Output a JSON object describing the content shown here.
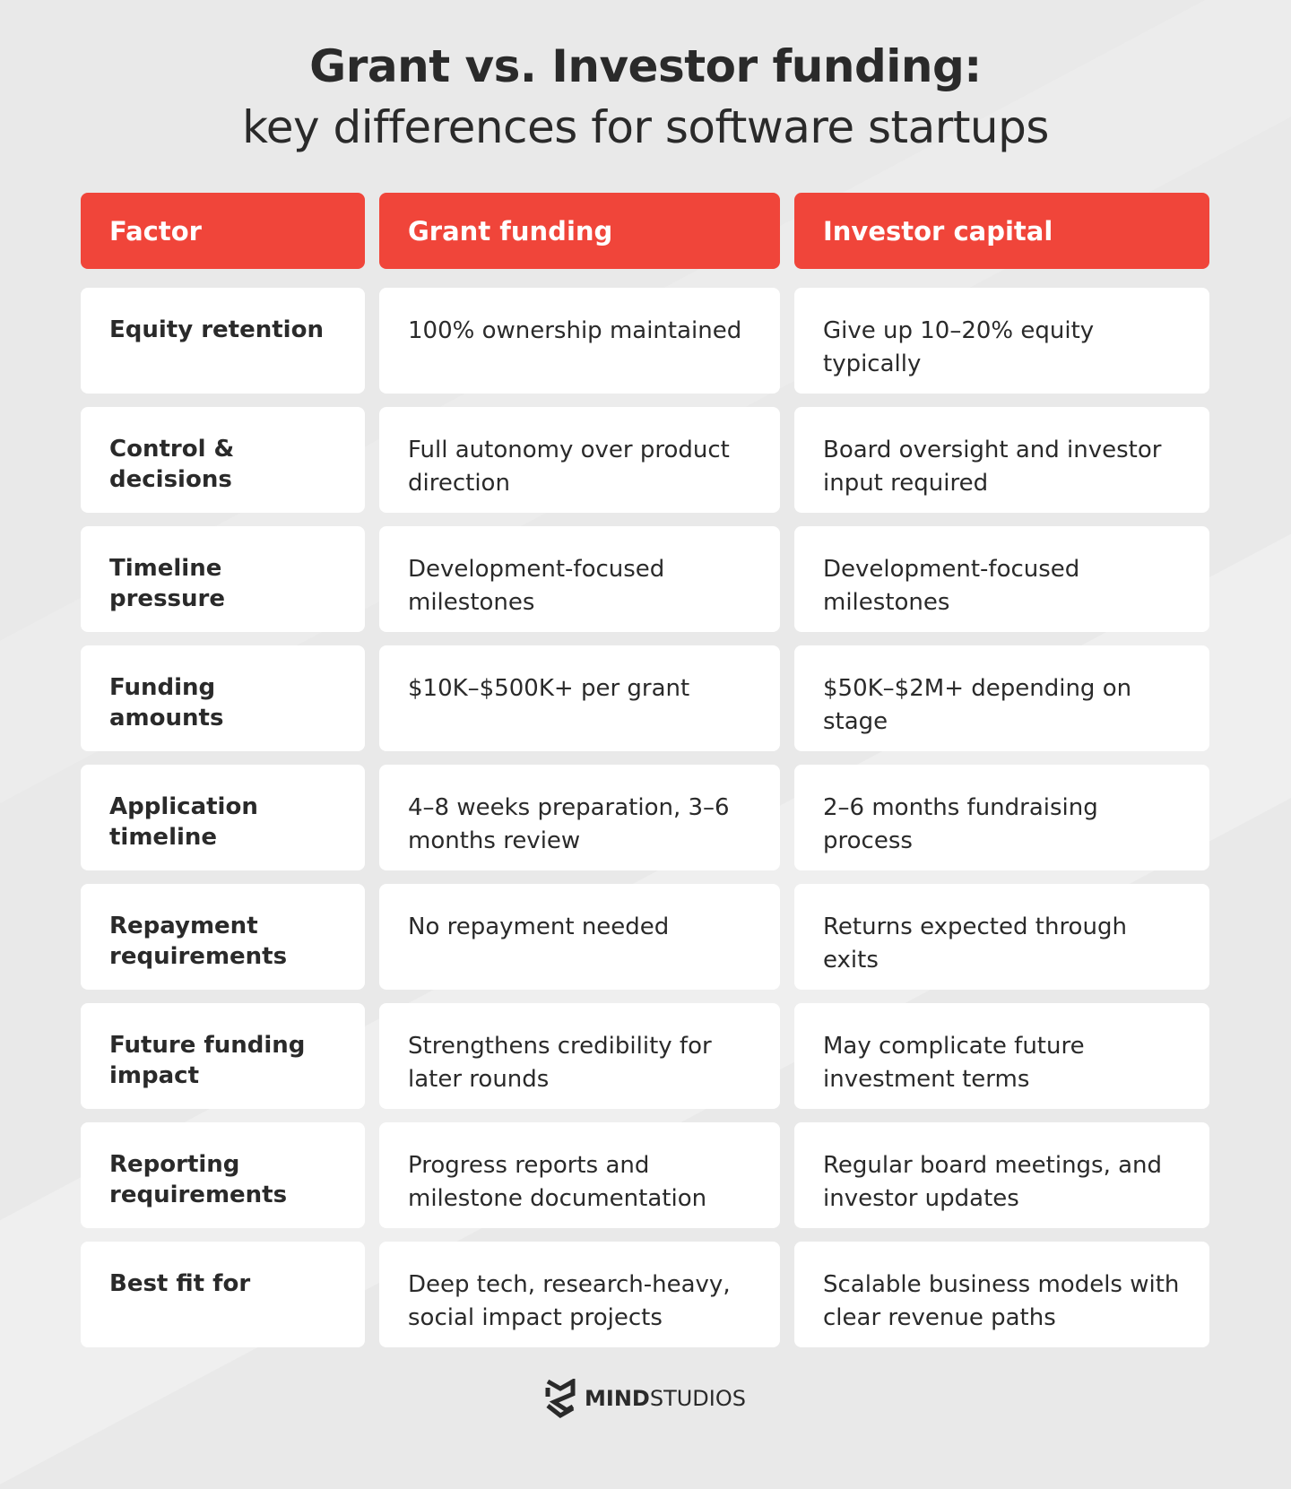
{
  "title": {
    "line1": "Grant vs. Investor funding:",
    "line2": "key differences for software startups"
  },
  "headers": [
    "Factor",
    "Grant funding",
    "Investor capital"
  ],
  "rows": [
    {
      "factor": "Equity retention",
      "grant": "100% ownership maintained",
      "investor": "Give up 10–20% equity typically"
    },
    {
      "factor": "Control & decisions",
      "grant": "Full autonomy over product direction",
      "investor": "Board oversight and investor input required"
    },
    {
      "factor": "Timeline pressure",
      "grant": "Development-focused milestones",
      "investor": "Development-focused milestones"
    },
    {
      "factor": "Funding amounts",
      "grant": "$10K–$500K+ per grant",
      "investor": "$50K–$2M+ depending on stage"
    },
    {
      "factor": "Application timeline",
      "grant": "4–8 weeks preparation, 3–6 months review",
      "investor": "2–6 months fundraising process"
    },
    {
      "factor": "Repayment requirements",
      "grant": "No repayment needed",
      "investor": "Returns expected through exits"
    },
    {
      "factor": "Future funding impact",
      "grant": "Strengthens credibility for later rounds",
      "investor": "May complicate future investment terms"
    },
    {
      "factor": "Reporting requirements",
      "grant": "Progress reports and milestone documentation",
      "investor": "Regular board meetings, and investor updates"
    },
    {
      "factor": "Best fit for",
      "grant": "Deep tech, research-heavy, social impact projects",
      "investor": "Scalable business models with clear revenue paths"
    }
  ],
  "logo": {
    "bold": "MIND",
    "light": "STUDIOS"
  },
  "colors": {
    "accent": "#f0453a",
    "background": "#e9e9e9"
  }
}
